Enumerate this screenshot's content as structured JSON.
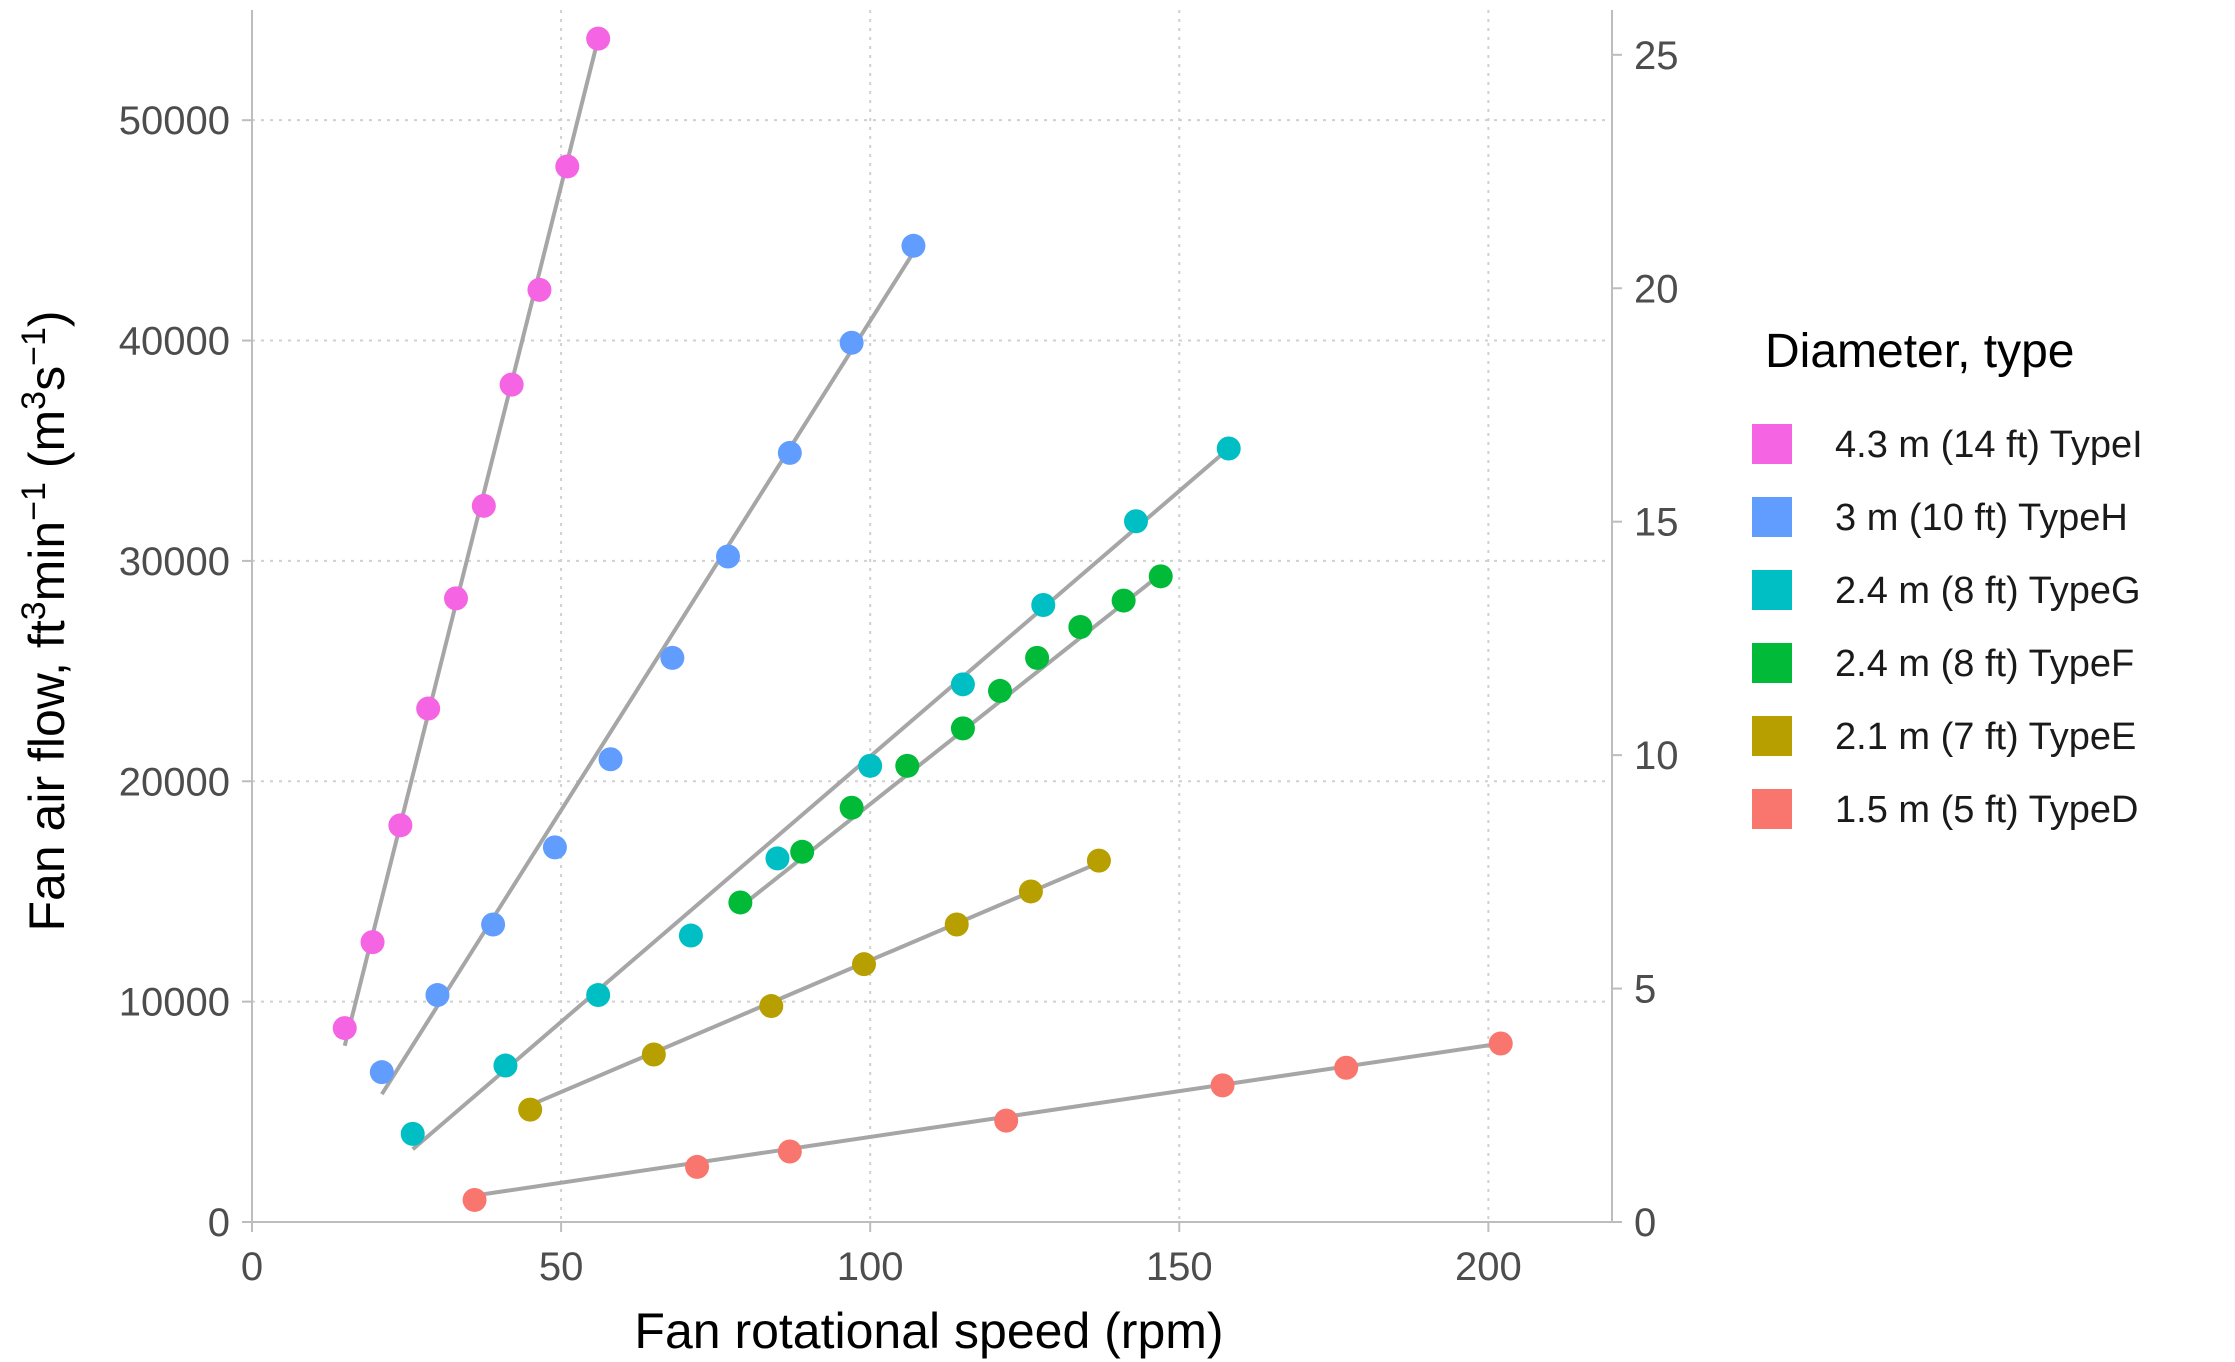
{
  "chart_data": {
    "type": "scatter",
    "title": "",
    "xlabel": "Fan rotational speed (rpm)",
    "ylabel": {
      "prefix": "Fan air flow, ft",
      "sup1": "3",
      "mid": "min",
      "sup2": "−1",
      "unit_open": " (m",
      "sup3": "3",
      "unit_mid": "s",
      "sup4": "−1",
      "unit_close": ")"
    },
    "xlim": [
      0,
      220
    ],
    "ylim": [
      0,
      55000
    ],
    "xticks": [
      0,
      50,
      100,
      150,
      200
    ],
    "yticks": [
      0,
      10000,
      20000,
      30000,
      40000,
      50000
    ],
    "y2lim": [
      0,
      25.96
    ],
    "y2ticks": [
      0,
      5,
      10,
      15,
      20,
      25
    ],
    "grid": true,
    "fit_line_color": "#a6a6a6",
    "legend_title": "Diameter, type",
    "legend_position": "right",
    "series": [
      {
        "name": "4.3 m (14 ft) TypeI",
        "color": "#f564e3",
        "x": [
          15,
          19.5,
          24,
          28.5,
          33,
          37.5,
          42,
          46.5,
          51,
          56
        ],
        "y": [
          8800,
          12700,
          18000,
          23300,
          28300,
          32500,
          38000,
          42300,
          47900,
          53700
        ],
        "fit": [
          [
            15,
            8000
          ],
          [
            56,
            53700
          ]
        ]
      },
      {
        "name": "3 m (10 ft) TypeH",
        "color": "#619cff",
        "x": [
          21,
          30,
          39,
          49,
          58,
          68,
          77,
          87,
          97,
          107
        ],
        "y": [
          6800,
          10300,
          13500,
          17000,
          21000,
          25600,
          30200,
          34900,
          39900,
          44300
        ],
        "fit": [
          [
            21,
            5800
          ],
          [
            107,
            44000
          ]
        ]
      },
      {
        "name": "2.4 m (8 ft) TypeG",
        "color": "#00bfc4",
        "x": [
          26,
          41,
          56,
          71,
          85,
          100,
          115,
          128,
          143,
          158
        ],
        "y": [
          4000,
          7100,
          10300,
          13000,
          16500,
          20700,
          24400,
          28000,
          31800,
          35100
        ],
        "fit": [
          [
            26,
            3300
          ],
          [
            158,
            35100
          ]
        ]
      },
      {
        "name": "2.4 m (8 ft) TypeF",
        "color": "#00ba38",
        "x": [
          79,
          89,
          97,
          106,
          115,
          121,
          127,
          134,
          141,
          147
        ],
        "y": [
          14500,
          16800,
          18800,
          20700,
          22400,
          24100,
          25600,
          27000,
          28200,
          29300
        ],
        "fit": [
          [
            79,
            14300
          ],
          [
            147,
            29400
          ]
        ]
      },
      {
        "name": "2.1 m (7 ft) TypeE",
        "color": "#b79f00",
        "x": [
          45,
          65,
          84,
          99,
          114,
          126,
          137
        ],
        "y": [
          5100,
          7600,
          9800,
          11700,
          13500,
          15000,
          16400
        ],
        "fit": [
          [
            45,
            5300
          ],
          [
            137,
            16300
          ]
        ]
      },
      {
        "name": "1.5 m (5 ft) TypeD",
        "color": "#f8766d",
        "x": [
          36,
          72,
          87,
          122,
          157,
          177,
          202
        ],
        "y": [
          1000,
          2500,
          3200,
          4600,
          6200,
          7000,
          8100
        ],
        "fit": [
          [
            36,
            1200
          ],
          [
            202,
            8100
          ]
        ]
      }
    ]
  }
}
